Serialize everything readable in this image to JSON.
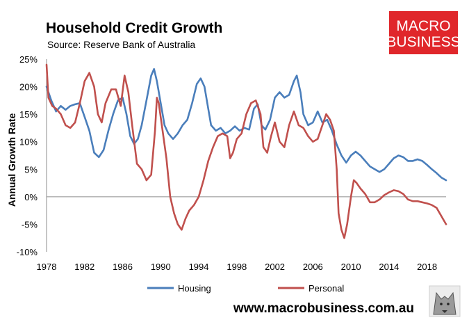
{
  "header": {
    "title": "Household Credit Growth",
    "subtitle": "Source: Reserve Bank of Australia"
  },
  "brand": {
    "logo_line1": "MACRO",
    "logo_line2": "BUSINESS",
    "logo_color": "#e0272b",
    "url": "www.macrobusiness.com.au"
  },
  "chart_data": {
    "type": "line",
    "ylabel": "Annual Growth Rate",
    "xlim": [
      1978,
      2020
    ],
    "ylim": [
      -10,
      25
    ],
    "x_ticks": [
      "1978",
      "1982",
      "1986",
      "1990",
      "1994",
      "1998",
      "2002",
      "2006",
      "2010",
      "2014",
      "2018"
    ],
    "y_ticks": [
      "25%",
      "20%",
      "15%",
      "10%",
      "5%",
      "0%",
      "-5%",
      "-10%"
    ],
    "grid": false,
    "zero_line": true,
    "legend_position": "bottom",
    "series": [
      {
        "name": "Housing",
        "color": "#4a7ebb",
        "points": [
          [
            1978.0,
            20.0
          ],
          [
            1978.5,
            17.5
          ],
          [
            1979.0,
            15.5
          ],
          [
            1979.5,
            16.5
          ],
          [
            1980.0,
            15.8
          ],
          [
            1980.5,
            16.5
          ],
          [
            1981.0,
            16.8
          ],
          [
            1981.5,
            17.0
          ],
          [
            1982.0,
            14.5
          ],
          [
            1982.5,
            12.0
          ],
          [
            1983.0,
            8.0
          ],
          [
            1983.5,
            7.2
          ],
          [
            1984.0,
            8.5
          ],
          [
            1984.5,
            12.0
          ],
          [
            1985.0,
            15.0
          ],
          [
            1985.5,
            17.5
          ],
          [
            1986.0,
            18.0
          ],
          [
            1986.4,
            15.0
          ],
          [
            1986.8,
            11.0
          ],
          [
            1987.2,
            9.6
          ],
          [
            1987.6,
            10.5
          ],
          [
            1988.0,
            13.0
          ],
          [
            1988.5,
            17.5
          ],
          [
            1989.0,
            22.0
          ],
          [
            1989.3,
            23.2
          ],
          [
            1989.6,
            21.0
          ],
          [
            1990.0,
            17.0
          ],
          [
            1990.4,
            13.0
          ],
          [
            1990.8,
            11.5
          ],
          [
            1991.3,
            10.5
          ],
          [
            1991.8,
            11.5
          ],
          [
            1992.3,
            13.0
          ],
          [
            1992.8,
            14.0
          ],
          [
            1993.3,
            17.0
          ],
          [
            1993.8,
            20.5
          ],
          [
            1994.2,
            21.5
          ],
          [
            1994.6,
            20.0
          ],
          [
            1995.0,
            16.0
          ],
          [
            1995.3,
            13.0
          ],
          [
            1995.8,
            12.0
          ],
          [
            1996.3,
            12.5
          ],
          [
            1996.8,
            11.5
          ],
          [
            1997.3,
            12.0
          ],
          [
            1997.8,
            12.8
          ],
          [
            1998.3,
            12.0
          ],
          [
            1998.8,
            12.5
          ],
          [
            1999.3,
            12.2
          ],
          [
            1999.8,
            16.0
          ],
          [
            2000.2,
            16.8
          ],
          [
            2000.6,
            13.0
          ],
          [
            2001.0,
            12.2
          ],
          [
            2001.5,
            14.0
          ],
          [
            2002.0,
            18.0
          ],
          [
            2002.5,
            19.0
          ],
          [
            2003.0,
            18.0
          ],
          [
            2003.5,
            18.5
          ],
          [
            2004.0,
            21.0
          ],
          [
            2004.3,
            22.0
          ],
          [
            2004.7,
            19.0
          ],
          [
            2005.0,
            15.0
          ],
          [
            2005.5,
            13.0
          ],
          [
            2006.0,
            13.5
          ],
          [
            2006.5,
            15.5
          ],
          [
            2007.0,
            13.5
          ],
          [
            2007.5,
            14.0
          ],
          [
            2008.0,
            12.0
          ],
          [
            2008.5,
            9.5
          ],
          [
            2009.0,
            7.5
          ],
          [
            2009.5,
            6.2
          ],
          [
            2010.0,
            7.5
          ],
          [
            2010.5,
            8.2
          ],
          [
            2011.0,
            7.5
          ],
          [
            2011.5,
            6.5
          ],
          [
            2012.0,
            5.5
          ],
          [
            2012.5,
            5.0
          ],
          [
            2013.0,
            4.5
          ],
          [
            2013.5,
            5.0
          ],
          [
            2014.0,
            6.0
          ],
          [
            2014.5,
            7.0
          ],
          [
            2015.0,
            7.5
          ],
          [
            2015.5,
            7.2
          ],
          [
            2016.0,
            6.5
          ],
          [
            2016.5,
            6.5
          ],
          [
            2017.0,
            6.8
          ],
          [
            2017.5,
            6.5
          ],
          [
            2018.0,
            5.8
          ],
          [
            2018.5,
            5.0
          ],
          [
            2019.0,
            4.3
          ],
          [
            2019.5,
            3.5
          ],
          [
            2020.0,
            3.0
          ]
        ]
      },
      {
        "name": "Personal",
        "color": "#c0504d",
        "points": [
          [
            1978.0,
            24.0
          ],
          [
            1978.2,
            18.0
          ],
          [
            1978.6,
            16.5
          ],
          [
            1979.0,
            16.0
          ],
          [
            1979.5,
            15.0
          ],
          [
            1980.0,
            13.0
          ],
          [
            1980.5,
            12.5
          ],
          [
            1981.0,
            13.5
          ],
          [
            1981.5,
            17.0
          ],
          [
            1982.0,
            21.0
          ],
          [
            1982.5,
            22.5
          ],
          [
            1983.0,
            20.0
          ],
          [
            1983.4,
            15.0
          ],
          [
            1983.8,
            13.5
          ],
          [
            1984.2,
            17.0
          ],
          [
            1984.8,
            19.5
          ],
          [
            1985.3,
            19.5
          ],
          [
            1985.8,
            16.5
          ],
          [
            1986.2,
            22.0
          ],
          [
            1986.6,
            19.0
          ],
          [
            1987.0,
            13.0
          ],
          [
            1987.5,
            6.0
          ],
          [
            1988.0,
            5.0
          ],
          [
            1988.5,
            3.0
          ],
          [
            1989.0,
            4.0
          ],
          [
            1989.4,
            12.0
          ],
          [
            1989.6,
            18.0
          ],
          [
            1989.8,
            17.0
          ],
          [
            1990.2,
            12.0
          ],
          [
            1990.6,
            7.0
          ],
          [
            1991.0,
            0.0
          ],
          [
            1991.4,
            -3.0
          ],
          [
            1991.8,
            -5.0
          ],
          [
            1992.2,
            -6.0
          ],
          [
            1992.6,
            -4.0
          ],
          [
            1993.0,
            -2.5
          ],
          [
            1993.5,
            -1.5
          ],
          [
            1994.0,
            0.0
          ],
          [
            1994.5,
            3.0
          ],
          [
            1995.0,
            6.5
          ],
          [
            1995.5,
            9.0
          ],
          [
            1996.0,
            11.0
          ],
          [
            1996.5,
            11.5
          ],
          [
            1997.0,
            11.0
          ],
          [
            1997.3,
            7.0
          ],
          [
            1997.6,
            8.0
          ],
          [
            1998.0,
            10.5
          ],
          [
            1998.5,
            11.5
          ],
          [
            1999.0,
            15.0
          ],
          [
            1999.5,
            17.0
          ],
          [
            2000.0,
            17.5
          ],
          [
            2000.5,
            15.0
          ],
          [
            2000.8,
            9.0
          ],
          [
            2001.2,
            8.0
          ],
          [
            2001.6,
            11.0
          ],
          [
            2002.0,
            13.5
          ],
          [
            2002.5,
            10.0
          ],
          [
            2003.0,
            9.0
          ],
          [
            2003.5,
            13.0
          ],
          [
            2004.0,
            15.5
          ],
          [
            2004.5,
            13.0
          ],
          [
            2005.0,
            12.5
          ],
          [
            2005.5,
            11.0
          ],
          [
            2006.0,
            10.0
          ],
          [
            2006.5,
            10.5
          ],
          [
            2007.0,
            13.0
          ],
          [
            2007.4,
            15.0
          ],
          [
            2007.8,
            14.0
          ],
          [
            2008.2,
            12.0
          ],
          [
            2008.5,
            5.0
          ],
          [
            2008.7,
            -3.0
          ],
          [
            2009.0,
            -6.0
          ],
          [
            2009.3,
            -7.5
          ],
          [
            2009.6,
            -5.0
          ],
          [
            2010.0,
            0.0
          ],
          [
            2010.3,
            3.0
          ],
          [
            2010.6,
            2.5
          ],
          [
            2011.0,
            1.5
          ],
          [
            2011.5,
            0.5
          ],
          [
            2012.0,
            -1.0
          ],
          [
            2012.5,
            -1.0
          ],
          [
            2013.0,
            -0.5
          ],
          [
            2013.5,
            0.3
          ],
          [
            2014.0,
            0.8
          ],
          [
            2014.5,
            1.2
          ],
          [
            2015.0,
            1.0
          ],
          [
            2015.5,
            0.5
          ],
          [
            2016.0,
            -0.5
          ],
          [
            2016.5,
            -0.8
          ],
          [
            2017.0,
            -0.8
          ],
          [
            2017.5,
            -1.0
          ],
          [
            2018.0,
            -1.2
          ],
          [
            2018.5,
            -1.5
          ],
          [
            2019.0,
            -2.0
          ],
          [
            2019.5,
            -3.5
          ],
          [
            2020.0,
            -5.0
          ]
        ]
      }
    ]
  }
}
